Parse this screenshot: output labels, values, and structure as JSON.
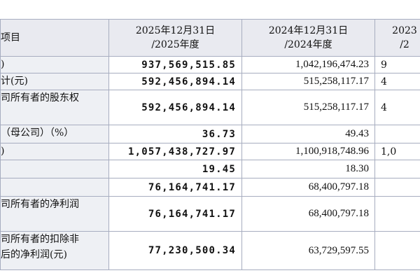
{
  "table": {
    "header": [
      "项目",
      "2025年12月31日\n/2025年度",
      "2024年12月31日\n/2024年度",
      "2023\n/2"
    ],
    "rows": [
      [
        ")",
        "937,569,515.85",
        "1,042,196,474.23",
        "9"
      ],
      [
        "计(元)",
        "592,456,894.14",
        "515,258,117.17",
        "4"
      ],
      [
        "司所有者的股东权",
        "592,456,894.14",
        "515,258,117.17",
        "4"
      ],
      [
        "（母公司）（%）",
        "36.73",
        "49.43",
        ""
      ],
      [
        ")",
        "1,057,438,727.97",
        "1,100,918,748.96",
        "1,0"
      ],
      [
        "",
        "19.45",
        "18.30",
        ""
      ],
      [
        "",
        "76,164,741.17",
        "68,400,797.18",
        ""
      ],
      [
        "司所有者的净利润",
        "76,164,741.17",
        "68,400,797.18",
        ""
      ],
      [
        "司所有者的扣除非\n后的净利润(元)",
        "77,230,500.34",
        "63,729,597.55",
        ""
      ]
    ]
  }
}
